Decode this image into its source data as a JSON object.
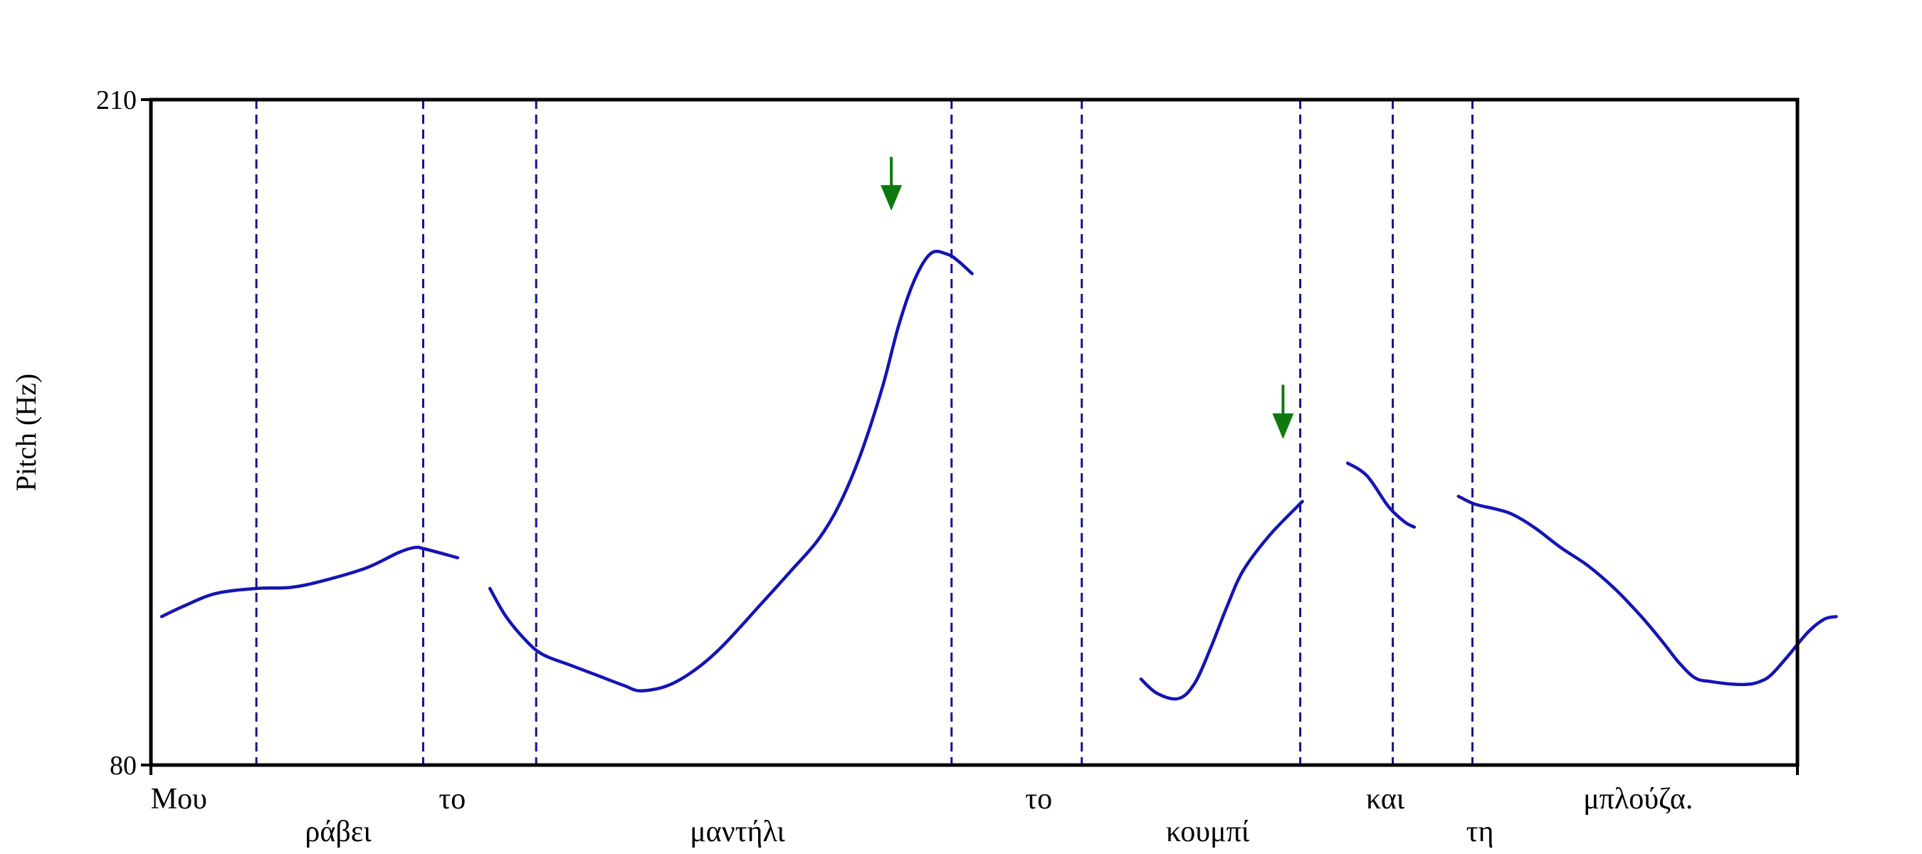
{
  "chart_data": {
    "type": "line",
    "title": "",
    "xlabel": "",
    "ylabel": "Pitch (Hz)",
    "ylim": [
      80,
      210
    ],
    "yticks": [
      "210",
      "80"
    ],
    "grid": false,
    "colors": {
      "contour": "#1414b4",
      "boundary": "#14148c",
      "arrow": "#0e7a0e"
    },
    "words": [
      {
        "text": "Μου",
        "row": 1,
        "anchor": 0.26
      },
      {
        "text": "ράβει",
        "row": 2,
        "anchor": 1.74
      },
      {
        "text": "το",
        "row": 1,
        "anchor": 2.8
      },
      {
        "text": "μαντήλι",
        "row": 2,
        "anchor": 5.45
      },
      {
        "text": "το",
        "row": 1,
        "anchor": 8.25
      },
      {
        "text": "κουμπί",
        "row": 2,
        "anchor": 9.82
      },
      {
        "text": "και",
        "row": 1,
        "anchor": 11.47
      },
      {
        "text": "τη",
        "row": 2,
        "anchor": 12.35
      },
      {
        "text": "μπλούζα.",
        "row": 1,
        "anchor": 13.82
      }
    ],
    "boundaries": [
      0.98,
      2.53,
      3.58,
      7.44,
      8.65,
      10.68,
      11.54,
      12.28
    ],
    "x": [
      0,
      15.3
    ],
    "series": [
      {
        "points": [
          [
            0.1,
            109
          ],
          [
            0.3,
            111
          ],
          [
            0.6,
            113.5
          ],
          [
            0.98,
            114.5
          ],
          [
            1.3,
            114.7
          ],
          [
            1.6,
            116
          ],
          [
            2.0,
            118.5
          ],
          [
            2.3,
            121.5
          ],
          [
            2.45,
            122.5
          ],
          [
            2.55,
            122.2
          ],
          [
            2.85,
            120.5
          ]
        ]
      },
      {
        "points": [
          [
            3.15,
            114.5
          ],
          [
            3.3,
            109
          ],
          [
            3.5,
            104
          ],
          [
            3.65,
            101.5
          ],
          [
            3.9,
            99.5
          ],
          [
            4.15,
            97.5
          ],
          [
            4.4,
            95.5
          ],
          [
            4.55,
            94.5
          ],
          [
            4.8,
            95.5
          ],
          [
            5.05,
            98.5
          ],
          [
            5.3,
            103
          ],
          [
            5.65,
            111
          ],
          [
            5.95,
            118
          ],
          [
            6.2,
            124
          ],
          [
            6.4,
            131
          ],
          [
            6.6,
            141
          ],
          [
            6.8,
            154
          ],
          [
            6.95,
            166
          ],
          [
            7.1,
            175
          ],
          [
            7.25,
            180
          ],
          [
            7.4,
            179.8
          ],
          [
            7.5,
            178.5
          ],
          [
            7.63,
            176
          ]
        ]
      },
      {
        "points": [
          [
            9.2,
            96.8
          ],
          [
            9.35,
            94
          ],
          [
            9.55,
            93
          ],
          [
            9.7,
            96
          ],
          [
            9.85,
            103
          ],
          [
            10.0,
            111
          ],
          [
            10.15,
            118
          ],
          [
            10.4,
            125
          ],
          [
            10.7,
            131.5
          ]
        ]
      },
      {
        "points": [
          [
            11.12,
            139
          ],
          [
            11.3,
            136.5
          ],
          [
            11.5,
            130.5
          ],
          [
            11.65,
            127.5
          ],
          [
            11.74,
            126.5
          ]
        ]
      },
      {
        "points": [
          [
            12.15,
            132.5
          ],
          [
            12.3,
            131
          ],
          [
            12.5,
            130
          ],
          [
            12.65,
            129
          ],
          [
            12.85,
            126.5
          ],
          [
            13.1,
            122.5
          ],
          [
            13.35,
            119
          ],
          [
            13.6,
            114.5
          ],
          [
            13.85,
            109
          ],
          [
            14.05,
            104
          ],
          [
            14.2,
            100
          ],
          [
            14.35,
            97
          ],
          [
            14.5,
            96.3
          ],
          [
            14.7,
            95.8
          ],
          [
            14.85,
            95.8
          ],
          [
            14.95,
            96.3
          ],
          [
            15.05,
            97.5
          ],
          [
            15.2,
            101
          ],
          [
            15.4,
            106
          ],
          [
            15.55,
            108.5
          ],
          [
            15.66,
            109
          ]
        ]
      }
    ],
    "annotations": [
      {
        "type": "arrow",
        "x": 6.88,
        "y_top": 198.8,
        "y_tip": 188.3
      },
      {
        "type": "arrow",
        "x": 10.52,
        "y_top": 154.3,
        "y_tip": 143.7
      }
    ]
  }
}
